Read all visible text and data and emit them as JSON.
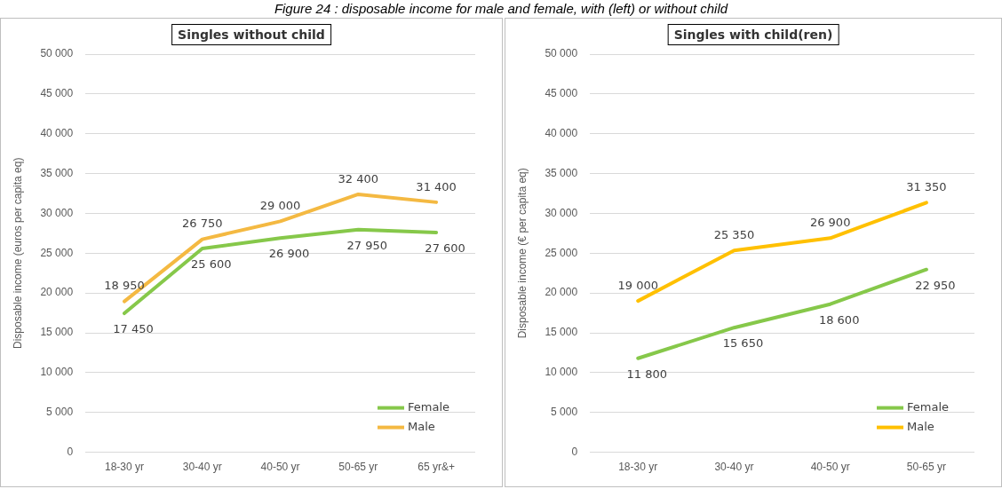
{
  "chart_data": [
    {
      "type": "line",
      "title": "Singles without child",
      "ylabel": "Disposable income (euros per capita eq)",
      "categories": [
        "18-30 yr",
        "30-40 yr",
        "40-50 yr",
        "50-65 yr",
        "65 yr&+"
      ],
      "series": [
        {
          "name": "Female",
          "color": "#86c84a",
          "values": [
            17450,
            25600,
            26900,
            27950,
            27600
          ]
        },
        {
          "name": "Male",
          "color": "#f4b942",
          "values": [
            18950,
            26750,
            29000,
            32400,
            31400
          ]
        }
      ],
      "ylim": [
        0,
        50000
      ],
      "yticks": [
        0,
        {
          "value": 5000,
          "label": "5 000"
        },
        {
          "value": 10000,
          "label": "10 000"
        },
        {
          "value": 15000,
          "label": "15 000"
        },
        {
          "value": 20000,
          "label": "20 000"
        },
        {
          "value": 25000,
          "label": "25 000"
        },
        {
          "value": 30000,
          "label": "30 000"
        },
        {
          "value": 35000,
          "label": "35 000"
        },
        {
          "value": 40000,
          "label": "40 000"
        },
        {
          "value": 45000,
          "label": "45 000"
        },
        {
          "value": 50000,
          "label": "50 000"
        }
      ],
      "value_labels": [
        [
          "17 450",
          "25 600",
          "26 900",
          "27 950",
          "27 600"
        ],
        [
          "18 950",
          "26 750",
          "29 000",
          "32 400",
          "31 400"
        ]
      ],
      "grid": "y",
      "legend": "bottom right",
      "marker": "none",
      "line_style": "solid",
      "annotations": [
        "Figure 24 : disposable income for male and female, with (left) or without child"
      ]
    },
    {
      "type": "line",
      "title": "Singles with child(ren)",
      "ylabel": "Disposable income (€ per capita eq)",
      "categories": [
        "18-30 yr",
        "30-40 yr",
        "40-50 yr",
        "50-65 yr"
      ],
      "series": [
        {
          "name": "Female",
          "color": "#86c84a",
          "values": [
            11800,
            15650,
            18600,
            22950
          ]
        },
        {
          "name": "Male",
          "color": "#ffc000",
          "values": [
            19000,
            25350,
            26900,
            31350
          ]
        }
      ],
      "ylim": [
        0,
        50000
      ],
      "yticks": [
        0,
        {
          "value": 5000,
          "label": "5 000"
        },
        {
          "value": 10000,
          "label": "10 000"
        },
        {
          "value": 15000,
          "label": "15 000"
        },
        {
          "value": 20000,
          "label": "20 000"
        },
        {
          "value": 25000,
          "label": "25 000"
        },
        {
          "value": 30000,
          "label": "30 000"
        },
        {
          "value": 35000,
          "label": "35 000"
        },
        {
          "value": 40000,
          "label": "40 000"
        },
        {
          "value": 45000,
          "label": "45 000"
        },
        {
          "value": 50000,
          "label": "50 000"
        }
      ],
      "value_labels": [
        [
          "11 800",
          "15 650",
          "18 600",
          "22 950"
        ],
        [
          "19 000",
          "25 350",
          "26 900",
          "31 350"
        ]
      ],
      "grid": "y",
      "legend": "bottom right",
      "marker": "none",
      "line_style": "solid"
    }
  ]
}
